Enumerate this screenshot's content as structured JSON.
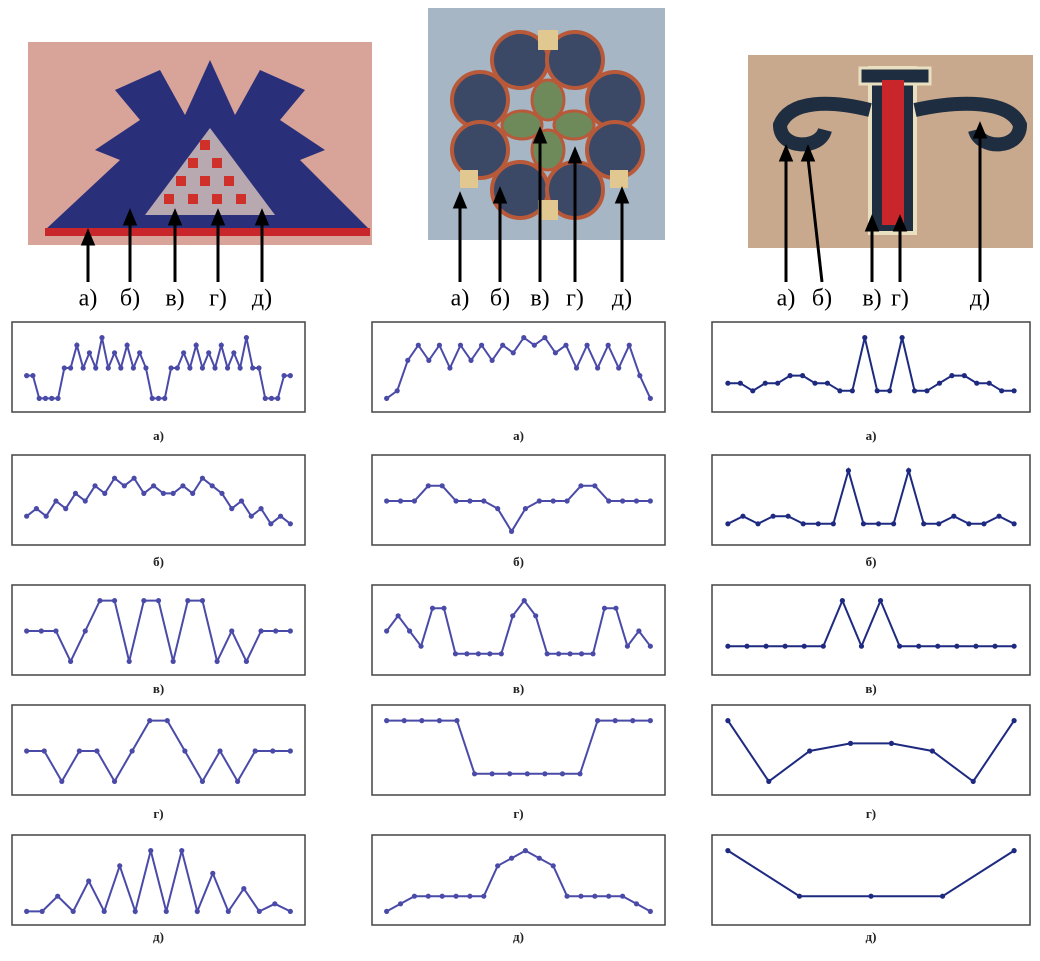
{
  "images": [
    {
      "labels": [
        "а)",
        "б)",
        "в)",
        "г)",
        "д)"
      ]
    },
    {
      "labels": [
        "а)",
        "б)",
        "в)",
        "г)",
        "д)"
      ]
    },
    {
      "labels": [
        "а)",
        "б)",
        "в)",
        "г)",
        "д)"
      ]
    }
  ],
  "chart_data": [
    {
      "type": "line",
      "caption": "а)",
      "color": "#4a4aa8",
      "ylim": [
        0,
        10
      ],
      "values": [
        4,
        4,
        1,
        1,
        1,
        1,
        5,
        5,
        8,
        5,
        7,
        5,
        9,
        5,
        7,
        5,
        8,
        5,
        7,
        5,
        1,
        1,
        1,
        5,
        5,
        7,
        5,
        8,
        5,
        7,
        5,
        8,
        5,
        7,
        5,
        9,
        5,
        5,
        1,
        1,
        1,
        4,
        4
      ]
    },
    {
      "type": "line",
      "caption": "б)",
      "color": "#4a4aa8",
      "ylim": [
        0,
        10
      ],
      "values": [
        3,
        4,
        3,
        5,
        4,
        6,
        5,
        7,
        6,
        8,
        7,
        8,
        6,
        7,
        6,
        6,
        7,
        6,
        8,
        7,
        6,
        4,
        5,
        3,
        4,
        2,
        3,
        2
      ]
    },
    {
      "type": "line",
      "caption": "в)",
      "color": "#4a4aa8",
      "ylim": [
        0,
        10
      ],
      "values": [
        5,
        5,
        5,
        1,
        5,
        9,
        9,
        1,
        9,
        9,
        1,
        9,
        9,
        1,
        5,
        1,
        5,
        5,
        5
      ]
    },
    {
      "type": "line",
      "caption": "г)",
      "color": "#4a4aa8",
      "ylim": [
        0,
        10
      ],
      "values": [
        5,
        5,
        1,
        5,
        5,
        1,
        5,
        9,
        9,
        5,
        1,
        5,
        1,
        5,
        5,
        5
      ]
    },
    {
      "type": "line",
      "caption": "д)",
      "color": "#4a4aa8",
      "ylim": [
        0,
        10
      ],
      "values": [
        1,
        1,
        3,
        1,
        5,
        1,
        7,
        1,
        9,
        1,
        9,
        1,
        6,
        1,
        4,
        1,
        2,
        1
      ]
    },
    {
      "type": "line",
      "caption": "а)",
      "color": "#4a4aa8",
      "ylim": [
        0,
        10
      ],
      "values": [
        1,
        2,
        6,
        8,
        6,
        8,
        5,
        8,
        6,
        8,
        6,
        8,
        7,
        9,
        8,
        9,
        7,
        8,
        5,
        8,
        5,
        8,
        5,
        8,
        4,
        1
      ]
    },
    {
      "type": "line",
      "caption": "б)",
      "color": "#4a4aa8",
      "ylim": [
        0,
        10
      ],
      "values": [
        5,
        5,
        5,
        7,
        7,
        5,
        5,
        5,
        4,
        1,
        4,
        5,
        5,
        5,
        7,
        7,
        5,
        5,
        5,
        5
      ]
    },
    {
      "type": "line",
      "caption": "в)",
      "color": "#4a4aa8",
      "ylim": [
        0,
        10
      ],
      "values": [
        5,
        7,
        5,
        3,
        8,
        8,
        2,
        2,
        2,
        2,
        2,
        7,
        9,
        7,
        2,
        2,
        2,
        2,
        2,
        8,
        8,
        3,
        5,
        3
      ]
    },
    {
      "type": "line",
      "caption": "г)",
      "color": "#4a4aa8",
      "ylim": [
        0,
        10
      ],
      "values": [
        9,
        9,
        9,
        9,
        9,
        2,
        2,
        2,
        2,
        2,
        2,
        2,
        9,
        9,
        9,
        9
      ]
    },
    {
      "type": "line",
      "caption": "д)",
      "color": "#4a4aa8",
      "ylim": [
        0,
        10
      ],
      "values": [
        1,
        2,
        3,
        3,
        3,
        3,
        3,
        3,
        7,
        8,
        9,
        8,
        7,
        3,
        3,
        3,
        3,
        3,
        2,
        1
      ]
    },
    {
      "type": "line",
      "caption": "а)",
      "color": "#1e2a80",
      "ylim": [
        0,
        10
      ],
      "values": [
        3,
        3,
        2,
        3,
        3,
        4,
        4,
        3,
        3,
        2,
        2,
        9,
        2,
        2,
        9,
        2,
        2,
        3,
        4,
        4,
        3,
        3,
        2,
        2
      ]
    },
    {
      "type": "line",
      "caption": "б)",
      "color": "#1e2a80",
      "ylim": [
        0,
        10
      ],
      "values": [
        2,
        3,
        2,
        3,
        3,
        2,
        2,
        2,
        9,
        2,
        2,
        2,
        9,
        2,
        2,
        3,
        2,
        2,
        3,
        2
      ]
    },
    {
      "type": "line",
      "caption": "в)",
      "color": "#1e2a80",
      "ylim": [
        0,
        10
      ],
      "values": [
        3,
        3,
        3,
        3,
        3,
        3,
        9,
        3,
        9,
        3,
        3,
        3,
        3,
        3,
        3,
        3
      ]
    },
    {
      "type": "line",
      "caption": "г)",
      "color": "#1e2a80",
      "ylim": [
        0,
        10
      ],
      "values": [
        9,
        1,
        5,
        6,
        6,
        5,
        1,
        9
      ]
    },
    {
      "type": "line",
      "caption": "д)",
      "color": "#1e2a80",
      "ylim": [
        0,
        10
      ],
      "values": [
        9,
        3,
        3,
        3,
        9
      ]
    }
  ]
}
